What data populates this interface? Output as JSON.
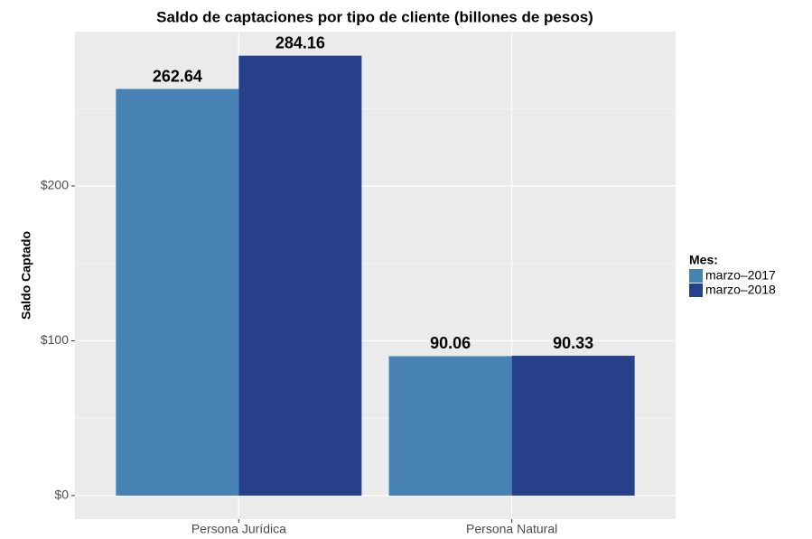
{
  "chart_data": {
    "type": "bar",
    "title": "Saldo de captaciones por tipo de cliente (billones de pesos)",
    "y_label": "Saldo Captado",
    "categories": [
      "Persona Jurídica",
      "Persona Natural"
    ],
    "series": [
      {
        "name": "marzo–2017",
        "color": "#4682b4",
        "values": [
          262.64,
          90.06
        ]
      },
      {
        "name": "marzo–2018",
        "color": "#27408b",
        "values": [
          284.16,
          90.33
        ]
      }
    ],
    "legend_title": "Mes:",
    "legend_position": "right",
    "ylim": [
      -15.2,
      299.7
    ],
    "yticks": [
      {
        "value": 0,
        "label": "$0"
      },
      {
        "value": 100,
        "label": "$100"
      },
      {
        "value": 200,
        "label": "$200"
      }
    ],
    "minor_yticks": [
      50,
      150,
      250
    ],
    "grid": true
  }
}
